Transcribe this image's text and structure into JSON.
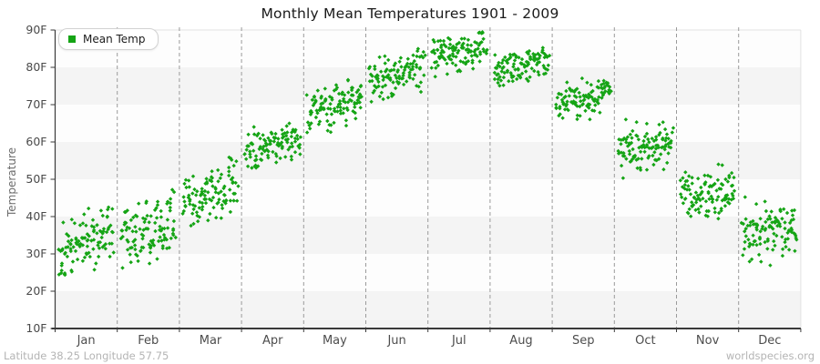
{
  "header": {
    "title": "Monthly Mean Temperatures 1901 - 2009"
  },
  "legend": {
    "label": "Mean Temp",
    "position": "top-left"
  },
  "axes": {
    "y_label": "Temperature",
    "y_ticks": [
      "10F",
      "20F",
      "30F",
      "40F",
      "50F",
      "60F",
      "70F",
      "80F",
      "90F"
    ],
    "x_ticks": [
      "Jan",
      "Feb",
      "Mar",
      "Apr",
      "May",
      "Jun",
      "Jul",
      "Aug",
      "Sep",
      "Oct",
      "Nov",
      "Dec"
    ]
  },
  "footer": {
    "left": "Latitude 38.25 Longitude 57.75",
    "right": "worldspecies.org"
  },
  "colors": {
    "marker_green": "#15a415",
    "band_gray": "#f4f4f4",
    "band_white": "#fdfdfd",
    "gridline": "#9a9a9a",
    "axis": "#3a3a3a",
    "tick_label": "#4a4a4a",
    "month_label": "#4d4d4d",
    "title_text": "#1a1a1a",
    "footer_text": "#b4b4b4",
    "plot_border": "#e2e2e2"
  },
  "chart_data": {
    "type": "scatter",
    "title": "Monthly Mean Temperatures 1901 - 2009",
    "xlabel": "",
    "ylabel": "Temperature",
    "ylim": [
      10,
      90
    ],
    "y_tick_step": 10,
    "y_unit": "F",
    "grid": "vertical-dashed-month-boundaries",
    "legend_position": "top-left",
    "series_name": "Mean Temp",
    "years_range": [
      1901,
      2009
    ],
    "points_per_month": 109,
    "categories": [
      "Jan",
      "Feb",
      "Mar",
      "Apr",
      "May",
      "Jun",
      "Jul",
      "Aug",
      "Sep",
      "Oct",
      "Nov",
      "Dec"
    ],
    "monthly_distributions": [
      {
        "month": "Jan",
        "mean": 33.0,
        "min": 19.0,
        "max": 42.5,
        "sd": 4.3,
        "trend": 6
      },
      {
        "month": "Feb",
        "mean": 36.0,
        "min": 21.0,
        "max": 47.5,
        "sd": 4.6,
        "trend": 5
      },
      {
        "month": "Mar",
        "mean": 46.5,
        "min": 37.5,
        "max": 59.0,
        "sd": 3.9,
        "trend": 5
      },
      {
        "month": "Apr",
        "mean": 59.5,
        "min": 53.0,
        "max": 68.0,
        "sd": 3.0,
        "trend": 4
      },
      {
        "month": "May",
        "mean": 70.0,
        "min": 62.5,
        "max": 77.0,
        "sd": 2.9,
        "trend": 4
      },
      {
        "month": "Jun",
        "mean": 78.0,
        "min": 70.0,
        "max": 85.0,
        "sd": 2.7,
        "trend": 5
      },
      {
        "month": "Jul",
        "mean": 84.0,
        "min": 77.5,
        "max": 89.5,
        "sd": 2.3,
        "trend": 3
      },
      {
        "month": "Aug",
        "mean": 81.0,
        "min": 75.0,
        "max": 88.0,
        "sd": 2.3,
        "trend": 3
      },
      {
        "month": "Sep",
        "mean": 72.0,
        "min": 66.0,
        "max": 78.5,
        "sd": 2.3,
        "trend": 3
      },
      {
        "month": "Oct",
        "mean": 59.0,
        "min": 48.0,
        "max": 68.5,
        "sd": 3.3,
        "trend": 3
      },
      {
        "month": "Nov",
        "mean": 46.0,
        "min": 35.5,
        "max": 54.5,
        "sd": 3.5,
        "trend": 3
      },
      {
        "month": "Dec",
        "mean": 36.5,
        "min": 24.5,
        "max": 46.5,
        "sd": 4.0,
        "trend": 2
      }
    ]
  }
}
